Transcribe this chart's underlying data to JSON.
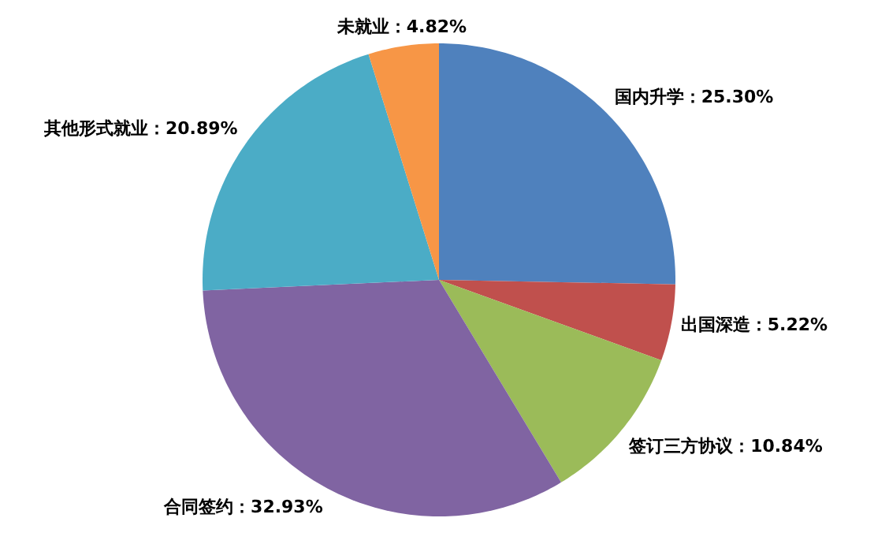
{
  "chart_data": {
    "type": "pie",
    "categories": [
      "国内升学",
      "出国深造",
      "签订三方协议",
      "合同签约",
      "其他形式就业",
      "未就业"
    ],
    "values": [
      25.3,
      5.22,
      10.84,
      32.93,
      20.89,
      4.82
    ],
    "value_labels": [
      "25.30%",
      "5.22%",
      "10.84%",
      "32.93%",
      "20.89%",
      "4.82%"
    ],
    "colors": [
      "#4f81bd",
      "#c0504d",
      "#9bbb59",
      "#8064a2",
      "#4bacc6",
      "#f79646"
    ]
  }
}
